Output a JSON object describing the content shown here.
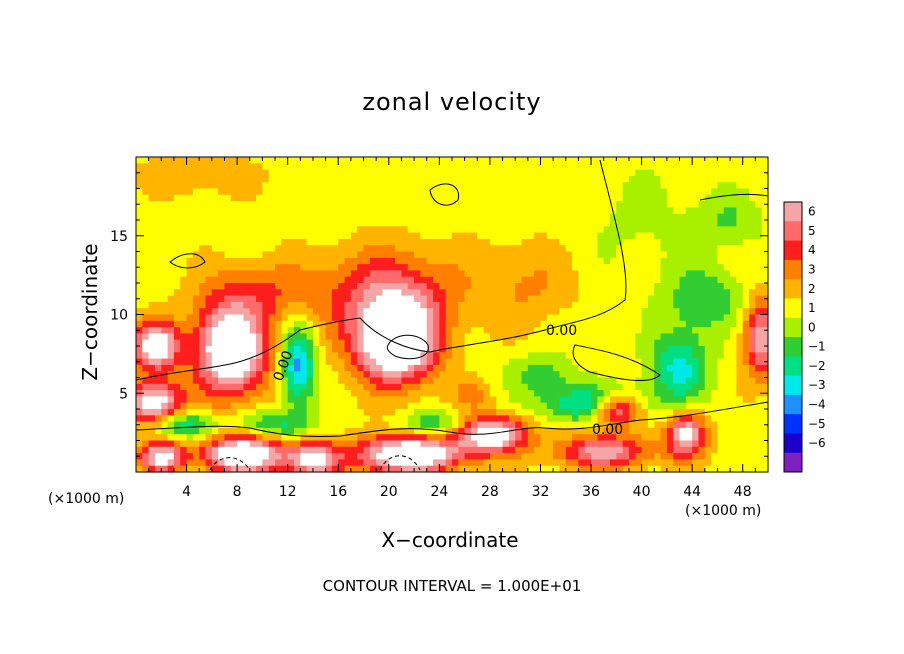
{
  "chart_data": {
    "type": "heatmap",
    "title": "zonal velocity",
    "xlabel": "X−coordinate",
    "ylabel": "Z−coordinate",
    "x_unit_left": "(×1000 m)",
    "x_unit_right": "(×1000 m)",
    "footnote": "CONTOUR INTERVAL = 1.000E+01",
    "xlim": [
      0,
      50
    ],
    "ylim": [
      0,
      20
    ],
    "x_ticks": [
      4,
      8,
      12,
      16,
      20,
      24,
      28,
      32,
      36,
      40,
      44,
      48
    ],
    "y_ticks": [
      5,
      10,
      15
    ],
    "contour_labels": [
      "0.00",
      "0.00",
      "0.00"
    ],
    "colorbar": {
      "ticks": [
        "6",
        "5",
        "4",
        "3",
        "2",
        "1",
        "0",
        "−1",
        "−2",
        "−3",
        "−4",
        "−5",
        "−6"
      ],
      "colors": [
        "#f4a6a6",
        "#ff6b6b",
        "#ff1e1e",
        "#ff7f00",
        "#ffb400",
        "#ffff00",
        "#a8f000",
        "#32cd32",
        "#00e082",
        "#00e8e8",
        "#1e90ff",
        "#0032ff",
        "#1a00c8",
        "#7f1fbf"
      ]
    },
    "field_blobs": [
      {
        "x": 20,
        "z": 11.5,
        "rx": 6,
        "rz": 3,
        "value": 3.5
      },
      {
        "x": 20.5,
        "z": 8.3,
        "rx": 3.5,
        "rz": 2.8,
        "value": 9
      },
      {
        "x": 7.5,
        "z": 7.8,
        "rx": 3.2,
        "rz": 3.2,
        "value": 8
      },
      {
        "x": 1.5,
        "z": 8.0,
        "rx": 2.0,
        "rz": 1.6,
        "value": 7
      },
      {
        "x": 1.5,
        "z": 4.3,
        "rx": 2.3,
        "rz": 1.6,
        "value": 7
      },
      {
        "x": 8.5,
        "z": 1.1,
        "rx": 3.5,
        "rz": 1.3,
        "value": 8
      },
      {
        "x": 14,
        "z": 0.8,
        "rx": 2.2,
        "rz": 1.2,
        "value": 6
      },
      {
        "x": 21.5,
        "z": 1.1,
        "rx": 4.5,
        "rz": 1.3,
        "value": 8
      },
      {
        "x": 2,
        "z": 1.0,
        "rx": 2.0,
        "rz": 1.1,
        "value": 6
      },
      {
        "x": 28,
        "z": 2.4,
        "rx": 3.2,
        "rz": 1.3,
        "value": 7
      },
      {
        "x": 38,
        "z": 4.0,
        "rx": 2.2,
        "rz": 1.1,
        "value": 7
      },
      {
        "x": 43.5,
        "z": 2.4,
        "rx": 1.7,
        "rz": 1.6,
        "value": 6
      },
      {
        "x": 37,
        "z": 1.3,
        "rx": 4,
        "rz": 1.2,
        "value": 5
      },
      {
        "x": 49.5,
        "z": 8.5,
        "rx": 1.6,
        "rz": 2.8,
        "value": 5
      },
      {
        "x": 5,
        "z": 18.8,
        "rx": 5,
        "rz": 1.2,
        "value": 1.5
      },
      {
        "x": 12.8,
        "z": 6.7,
        "rx": 1.4,
        "rz": 2.8,
        "value": -5
      },
      {
        "x": 3.5,
        "z": 3.0,
        "rx": 3.0,
        "rz": 1.0,
        "value": -4
      },
      {
        "x": 36.5,
        "z": 4.3,
        "rx": 4.5,
        "rz": 1.3,
        "value": -4.5
      },
      {
        "x": 43,
        "z": 6.6,
        "rx": 2.5,
        "rz": 2.5,
        "value": -4
      },
      {
        "x": 45,
        "z": 11,
        "rx": 3.5,
        "rz": 2.2,
        "value": -2.5
      },
      {
        "x": 32,
        "z": 6.2,
        "rx": 3,
        "rz": 1.5,
        "value": -2
      },
      {
        "x": 24,
        "z": 3.0,
        "rx": 3,
        "rz": 0.9,
        "value": -3
      },
      {
        "x": 47,
        "z": 16,
        "rx": 3,
        "rz": 1.8,
        "value": -1.5
      },
      {
        "x": 11,
        "z": 3.0,
        "rx": 3,
        "rz": 1.0,
        "value": -3
      },
      {
        "x": 10,
        "z": 11.5,
        "rx": 5,
        "rz": 2,
        "value": 2
      },
      {
        "x": 31,
        "z": 12,
        "rx": 4,
        "rz": 3,
        "value": 1.5
      },
      {
        "x": 26.5,
        "z": 5.0,
        "rx": 2,
        "rz": 1,
        "value": 1.5
      },
      {
        "x": 40,
        "z": 16,
        "rx": 6,
        "rz": 4,
        "value": -0.8
      }
    ]
  }
}
